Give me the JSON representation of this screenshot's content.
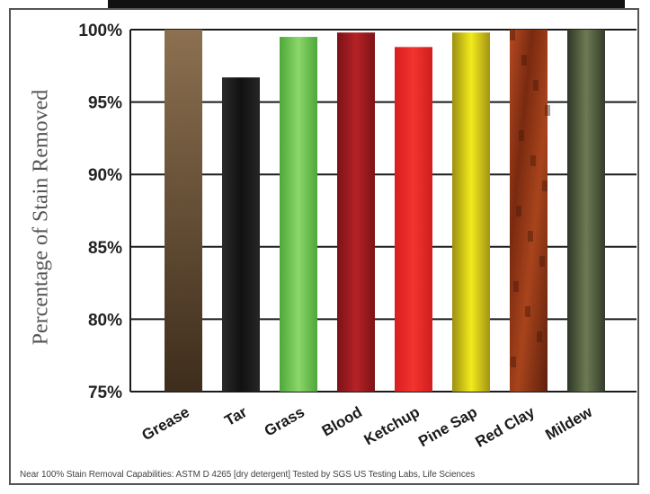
{
  "chart_data": {
    "type": "bar",
    "title": "",
    "xlabel": "",
    "ylabel": "Percentage of Stain Removed",
    "ylim": [
      75,
      100
    ],
    "yticks": [
      "100%",
      "95%",
      "90%",
      "85%",
      "80%",
      "75%"
    ],
    "categories": [
      "Grease",
      "Tar",
      "Grass",
      "Blood",
      "Ketchup",
      "Pine Sap",
      "Red Clay",
      "Mildew"
    ],
    "values": [
      100,
      96.7,
      99.5,
      99.8,
      98.8,
      99.8,
      100,
      100
    ],
    "colors": [
      "#6e5436",
      "#1a1a1a",
      "#6fc34a",
      "#9a1a1e",
      "#e8282a",
      "#d9cc1c",
      "#9a3818",
      "#4d5c3c"
    ],
    "grid": true,
    "footnote": "Near 100% Stain Removal Capabilities: ASTM D 4265 [dry detergent] Tested by SGS US Testing Labs, Life Sciences"
  }
}
